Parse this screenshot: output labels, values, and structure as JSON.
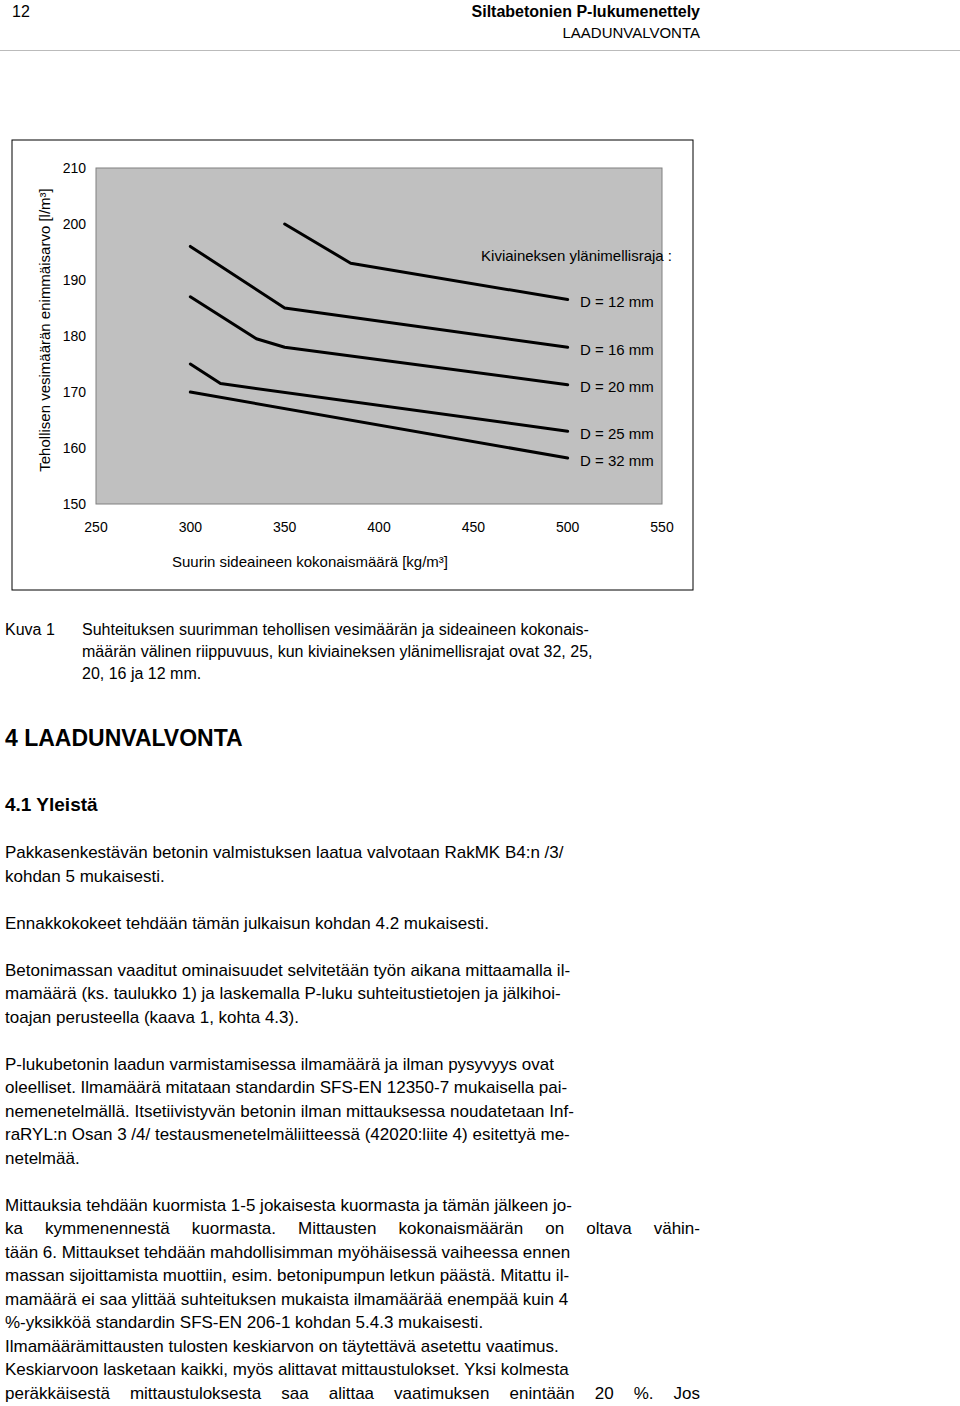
{
  "header": {
    "page_number": "12",
    "title": "Siltabetonien P-lukumenettely",
    "section": "LAADUNVALVONTA"
  },
  "chart_data": {
    "type": "line",
    "x_label": "Suurin sideaineen kokonaismäärä [kg/m³]",
    "y_label": "Tehollisen vesimäärän enimmäisarvo [l/m³]",
    "legend_title": "Kiviaineksen ylänimellisraja :",
    "xlim": [
      250,
      550
    ],
    "xticks": [
      250,
      300,
      350,
      400,
      450,
      500,
      550
    ],
    "ylim": [
      150,
      210
    ],
    "yticks": [
      150,
      160,
      170,
      180,
      190,
      200,
      210
    ],
    "grid": false,
    "series": [
      {
        "name": "D = 12 mm",
        "color": "#000000",
        "x": [
          350,
          385,
          500
        ],
        "values": [
          200,
          193,
          186.5
        ]
      },
      {
        "name": "D = 16 mm",
        "color": "#000000",
        "x": [
          300,
          350,
          500
        ],
        "values": [
          196,
          185,
          178
        ]
      },
      {
        "name": "D = 20 mm",
        "color": "#000000",
        "x": [
          300,
          335,
          350,
          500
        ],
        "values": [
          187,
          179.5,
          178,
          171.3
        ]
      },
      {
        "name": "D = 25 mm",
        "color": "#000000",
        "x": [
          300,
          316,
          500
        ],
        "values": [
          175,
          171.5,
          163
        ]
      },
      {
        "name": "D = 32 mm",
        "color": "#000000",
        "x": [
          300,
          500
        ],
        "values": [
          170,
          158.2
        ]
      }
    ]
  },
  "caption": {
    "label": "Kuva 1",
    "lines": [
      "Suhteituksen suurimman tehollisen vesimäärän ja sideaineen kokonais-",
      "määrän välinen riippuvuus, kun kiviaineksen ylänimellisrajat ovat 32, 25,",
      "20, 16 ja 12 mm."
    ]
  },
  "heading": "4 LAADUNVALVONTA",
  "subheading": "4.1 Yleistä",
  "paragraphs": [
    [
      "Pakkasenkestävän betonin valmistuksen laatua valvotaan RakMK B4:n /3/",
      "kohdan 5 mukaisesti."
    ],
    [
      "Ennakkokokeet tehdään tämän julkaisun kohdan 4.2 mukaisesti."
    ],
    [
      "Betonimassan vaaditut ominaisuudet selvitetään työn aikana mittaamalla il-",
      "mamäärä (ks. taulukko 1) ja laskemalla P-luku suhteitustietojen ja jälkihoi-",
      "toajan perusteella (kaava 1, kohta 4.3)."
    ],
    [
      "P-lukubetonin laadun varmistamisessa ilmamäärä ja ilman pysyvyys ovat",
      "oleelliset. Ilmamäärä mitataan standardin SFS-EN 12350-7 mukaisella pai-",
      "nemenetelmällä. Itsetiivistyvän betonin ilman mittauksessa noudatetaan Inf-",
      "raRYL:n Osan 3 /4/ testausmenetelmäliitteessä (42020:liite 4) esitettyä me-",
      "netelmää."
    ],
    [
      "Mittauksia tehdään kuormista 1-5 jokaisesta kuormasta ja tämän jälkeen jo-",
      "ka kymmenennestä kuormasta. Mittausten kokonaismäärän on oltava vähin-",
      "tään 6. Mittaukset tehdään mahdollisimman myöhäisessä vaiheessa ennen",
      "massan sijoittamista muottiin, esim. betonipumpun letkun päästä. Mitattu il-",
      "mamäärä ei saa ylittää suhteituksen mukaista ilmamäärää enempää kuin 4",
      "%-yksikköä standardin SFS-EN 206-1 kohdan 5.4.3 mukaisesti.",
      "Ilmamäärämittausten tulosten keskiarvon on täytettävä asetettu vaatimus.",
      "Keskiarvoon lasketaan kaikki, myös alittavat mittaustulokset. Yksi kolmesta",
      "peräkkäisestä mittaustuloksesta saa alittaa vaatimuksen enintään 20 %. Jos"
    ]
  ]
}
